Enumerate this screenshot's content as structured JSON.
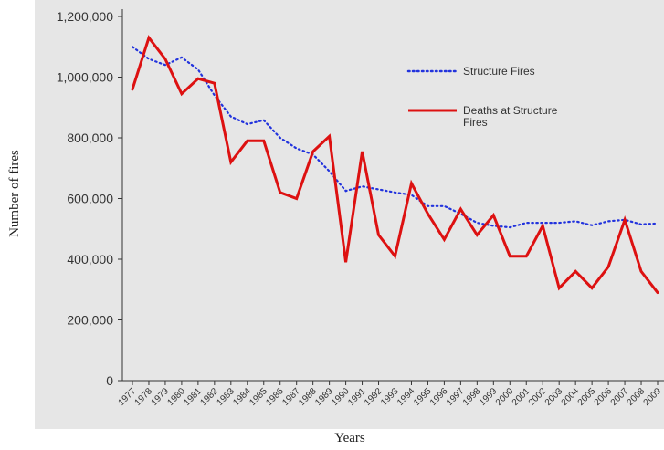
{
  "chart_data": {
    "type": "line",
    "title": "",
    "xlabel": "Years",
    "ylabel": "Number of fires",
    "ylim": [
      0,
      1200000
    ],
    "y_ticks": [
      "0",
      "200,000",
      "400,000",
      "600,000",
      "800,000",
      "1,000,000",
      "1,200,000"
    ],
    "grid": false,
    "legend_position": "top-right",
    "background_color": "#e6e6e6",
    "categories": [
      "1977",
      "1978",
      "1979",
      "1980",
      "1981",
      "1982",
      "1983",
      "1984",
      "1985",
      "1986",
      "1987",
      "1988",
      "1989",
      "1990",
      "1991",
      "1992",
      "1993",
      "1994",
      "1995",
      "1996",
      "1997",
      "1998",
      "1999",
      "2000",
      "2001",
      "2002",
      "2003",
      "2004",
      "2005",
      "2006",
      "2007",
      "2008",
      "2009"
    ],
    "series": [
      {
        "name": "Structure Fires",
        "color": "#2233dd",
        "style": "dotted",
        "values": [
          1100000,
          1060000,
          1040000,
          1065000,
          1025000,
          940000,
          870000,
          845000,
          858000,
          800000,
          765000,
          745000,
          690000,
          625000,
          640000,
          630000,
          620000,
          612000,
          575000,
          575000,
          550000,
          520000,
          510000,
          505000,
          520000,
          520000,
          520000,
          525000,
          512000,
          525000,
          530000,
          515000,
          518000
        ]
      },
      {
        "name": "Deaths at Structure Fires",
        "color": "#dd1111",
        "style": "solid",
        "values": [
          960000,
          1130000,
          1060000,
          945000,
          995000,
          980000,
          720000,
          790000,
          790000,
          620000,
          600000,
          755000,
          805000,
          390000,
          755000,
          480000,
          410000,
          650000,
          550000,
          465000,
          565000,
          480000,
          545000,
          410000,
          410000,
          510000,
          305000,
          360000,
          305000,
          375000,
          530000,
          360000,
          290000
        ]
      }
    ]
  }
}
